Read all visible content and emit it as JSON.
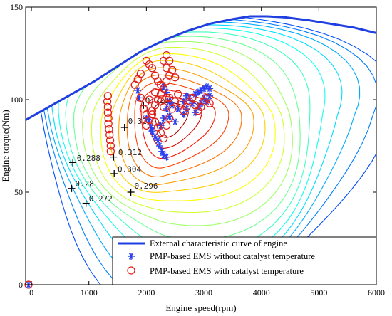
{
  "chart_data": {
    "type": "scatter",
    "xlabel": "Engine speed(rpm)",
    "ylabel": "Engine torque(Nm)",
    "xlim": [
      -100,
      6000
    ],
    "ylim": [
      0,
      150
    ],
    "xticks": [
      "0",
      "1000",
      "2000",
      "3000",
      "4000",
      "5000",
      "6000"
    ],
    "yticks": [
      "0",
      "50",
      "100",
      "150"
    ],
    "grid": false,
    "legend_position": "bottom-right",
    "external_curve": {
      "name": "External characteristic curve of engine",
      "color": "#1f3fe0",
      "x": [
        -100,
        300,
        700,
        1100,
        1500,
        1900,
        2300,
        2700,
        3100,
        3500,
        3800,
        4100,
        4400,
        4800,
        5200,
        5600,
        6000
      ],
      "y": [
        89,
        96,
        103,
        110,
        118,
        126,
        132,
        137,
        141,
        143.5,
        145,
        145,
        144.5,
        143,
        141,
        139,
        136
      ]
    },
    "contour_labels": [
      {
        "label": "0.328",
        "x": 1980,
        "y": 98
      },
      {
        "label": "0.32",
        "x": 1680,
        "y": 87
      },
      {
        "label": "0.312",
        "x": 1510,
        "y": 70
      },
      {
        "label": "0.304",
        "x": 1500,
        "y": 61
      },
      {
        "label": "0.296",
        "x": 1790,
        "y": 52
      },
      {
        "label": "0.288",
        "x": 790,
        "y": 67
      },
      {
        "label": "0.28",
        "x": 760,
        "y": 53
      },
      {
        "label": "0.272",
        "x": 1000,
        "y": 45
      }
    ],
    "contour_markers": [
      {
        "x": 1950,
        "y": 97
      },
      {
        "x": 1620,
        "y": 85
      },
      {
        "x": 1430,
        "y": 69
      },
      {
        "x": 1440,
        "y": 60
      },
      {
        "x": 1730,
        "y": 50
      },
      {
        "x": 720,
        "y": 66
      },
      {
        "x": 700,
        "y": 52
      },
      {
        "x": 950,
        "y": 44
      }
    ],
    "series": [
      {
        "name": "PMP-based EMS without catalyst temperature",
        "marker": "asterisk",
        "color": "#2a3ff0",
        "points": [
          [
            1850,
            105
          ],
          [
            1870,
            101
          ],
          [
            2000,
            90
          ],
          [
            2050,
            88
          ],
          [
            2080,
            85
          ],
          [
            2100,
            83
          ],
          [
            2150,
            80
          ],
          [
            2200,
            78
          ],
          [
            2230,
            75
          ],
          [
            2270,
            72
          ],
          [
            2300,
            70
          ],
          [
            2350,
            69
          ],
          [
            2250,
            86
          ],
          [
            2300,
            90
          ],
          [
            2350,
            95
          ],
          [
            2400,
            99
          ],
          [
            2450,
            97
          ],
          [
            2350,
            104
          ],
          [
            2300,
            107
          ],
          [
            2400,
            91
          ],
          [
            2500,
            88
          ],
          [
            2550,
            95
          ],
          [
            2650,
            99
          ],
          [
            2700,
            102
          ],
          [
            2750,
            101
          ],
          [
            2800,
            98
          ],
          [
            2850,
            103
          ],
          [
            2900,
            104
          ],
          [
            2950,
            105
          ],
          [
            3000,
            106
          ],
          [
            3050,
            107
          ],
          [
            3100,
            106
          ],
          [
            2900,
            96
          ],
          [
            2850,
            93
          ],
          [
            2950,
            98
          ],
          [
            3000,
            101
          ],
          [
            3050,
            99
          ],
          [
            3100,
            102
          ],
          [
            2700,
            95
          ],
          [
            2650,
            92
          ],
          [
            -50,
            0
          ]
        ]
      },
      {
        "name": "PMP-based EMS with catalyst temperature",
        "marker": "circle",
        "color": "#e0201a",
        "points": [
          [
            1330,
            102
          ],
          [
            1320,
            99
          ],
          [
            1330,
            96
          ],
          [
            1330,
            93
          ],
          [
            1340,
            90
          ],
          [
            1340,
            87
          ],
          [
            1350,
            84
          ],
          [
            1360,
            81
          ],
          [
            1370,
            78
          ],
          [
            1380,
            75
          ],
          [
            1380,
            72
          ],
          [
            1800,
            108
          ],
          [
            1900,
            101
          ],
          [
            1950,
            95
          ],
          [
            2000,
            92
          ],
          [
            2050,
            89
          ],
          [
            2000,
            86
          ],
          [
            2100,
            94
          ],
          [
            2150,
            97
          ],
          [
            2200,
            100
          ],
          [
            2250,
            103
          ],
          [
            2300,
            106
          ],
          [
            2350,
            110
          ],
          [
            2400,
            113
          ],
          [
            2350,
            117
          ],
          [
            2300,
            121
          ],
          [
            2350,
            124
          ],
          [
            2400,
            121
          ],
          [
            2450,
            116
          ],
          [
            2500,
            112
          ],
          [
            2200,
            110
          ],
          [
            2150,
            113
          ],
          [
            2100,
            117
          ],
          [
            2000,
            121
          ],
          [
            2050,
            119
          ],
          [
            1900,
            114
          ],
          [
            1850,
            111
          ],
          [
            2050,
            100
          ],
          [
            2100,
            92
          ],
          [
            2150,
            88
          ],
          [
            2200,
            85
          ],
          [
            2250,
            82
          ],
          [
            2300,
            79
          ],
          [
            2350,
            86
          ],
          [
            2400,
            90
          ],
          [
            2450,
            95
          ],
          [
            2500,
            99
          ],
          [
            2550,
            103
          ],
          [
            2600,
            98
          ],
          [
            2650,
            94
          ],
          [
            2700,
            96
          ],
          [
            2750,
            99
          ],
          [
            2800,
            101
          ],
          [
            2850,
            97
          ],
          [
            2900,
            94
          ],
          [
            2950,
            96
          ],
          [
            3000,
            99
          ],
          [
            3050,
            101
          ],
          [
            3100,
            98
          ],
          [
            2300,
            96
          ],
          [
            2250,
            99
          ],
          [
            2400,
            101
          ],
          [
            2150,
            104
          ],
          [
            2250,
            108
          ],
          [
            2350,
            101
          ],
          [
            -50,
            0
          ]
        ]
      }
    ]
  }
}
